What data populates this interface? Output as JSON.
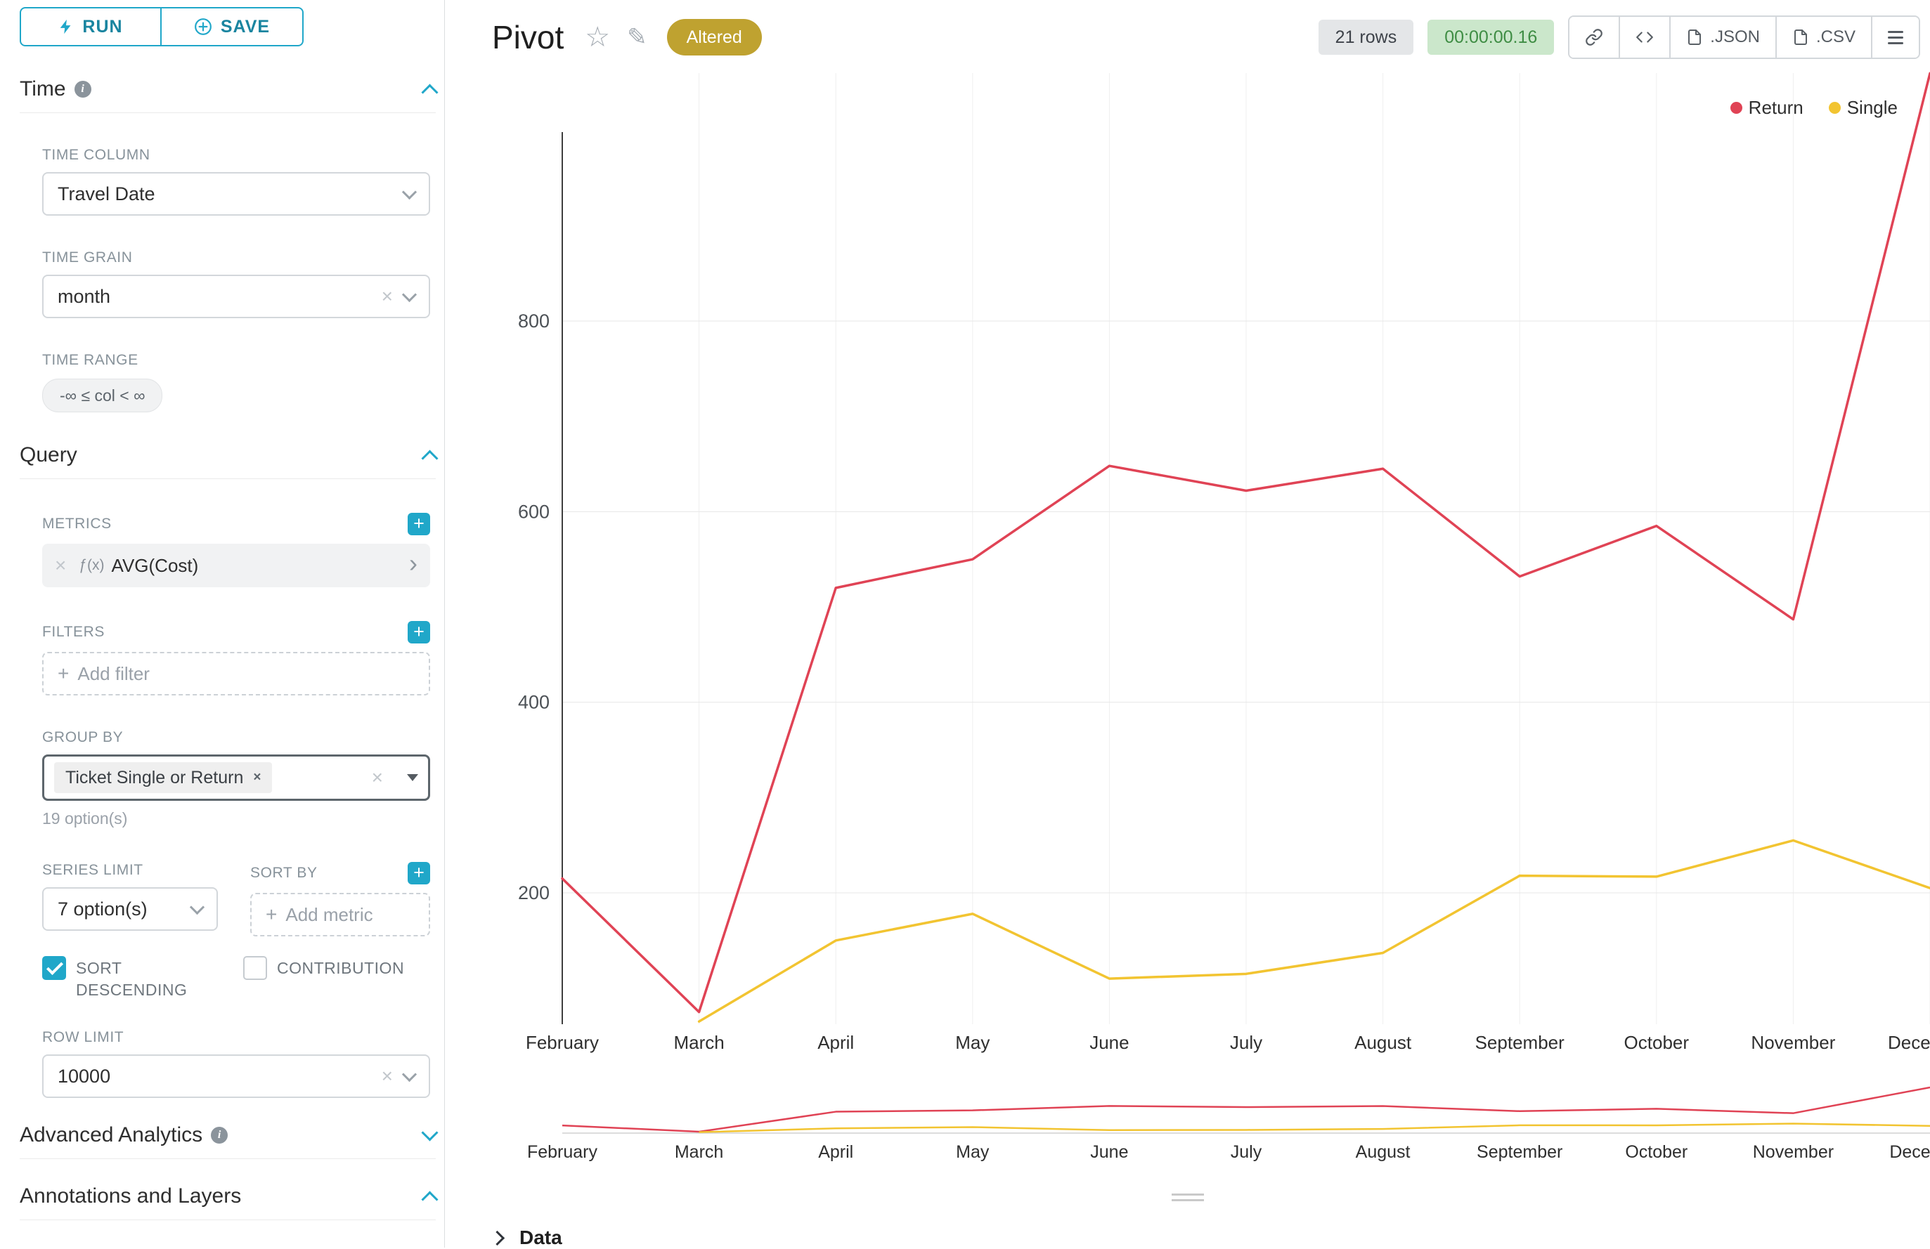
{
  "sidebar": {
    "run_label": "RUN",
    "save_label": "SAVE",
    "time": {
      "title": "Time",
      "time_column_label": "TIME COLUMN",
      "time_column_value": "Travel Date",
      "time_grain_label": "TIME GRAIN",
      "time_grain_value": "month",
      "time_range_label": "TIME RANGE",
      "time_range_value": "-∞ ≤ col < ∞"
    },
    "query": {
      "title": "Query",
      "metrics_label": "METRICS",
      "metric_fx": "ƒ(x)",
      "metric_value": "AVG(Cost)",
      "filters_label": "FILTERS",
      "add_filter_label": "Add filter",
      "group_by_label": "GROUP BY",
      "group_by_tag": "Ticket Single or Return",
      "group_by_hint": "19 option(s)",
      "series_limit_label": "SERIES LIMIT",
      "series_limit_value": "7 option(s)",
      "sort_by_label": "SORT BY",
      "add_metric_label": "Add metric",
      "sort_descending_label": "SORT DESCENDING",
      "contribution_label": "CONTRIBUTION",
      "row_limit_label": "ROW LIMIT",
      "row_limit_value": "10000"
    },
    "advanced_title": "Advanced Analytics",
    "annotations_title": "Annotations and Layers"
  },
  "header": {
    "title": "Pivot",
    "altered": "Altered",
    "rows": "21 rows",
    "duration": "00:00:00.16",
    "json_label": ".JSON",
    "csv_label": ".CSV"
  },
  "footer": {
    "data_label": "Data"
  },
  "colors": {
    "accent": "#20a7c9",
    "altered_badge": "#bfa230",
    "timer_badge_bg": "#cbe7cb",
    "timer_badge_text": "#3f8d44",
    "series_return": "#e04355",
    "series_single": "#f2c431"
  },
  "chart_data": {
    "type": "line",
    "title": "",
    "xlabel": "",
    "ylabel": "",
    "x": [
      "February",
      "March",
      "April",
      "May",
      "June",
      "July",
      "August",
      "September",
      "October",
      "November",
      "December"
    ],
    "series": [
      {
        "name": "Return",
        "color": "#e04355",
        "values": [
          215,
          75,
          520,
          550,
          648,
          622,
          645,
          532,
          585,
          487,
          1060
        ]
      },
      {
        "name": "Single",
        "color": "#f2c431",
        "values": [
          null,
          65,
          150,
          178,
          110,
          115,
          137,
          218,
          217,
          255,
          205
        ]
      }
    ],
    "yticks": [
      200,
      400,
      600,
      800
    ],
    "ylim": [
      60,
      1060
    ],
    "grid": true,
    "legend_position": "top-right",
    "brush_minimap": true
  }
}
